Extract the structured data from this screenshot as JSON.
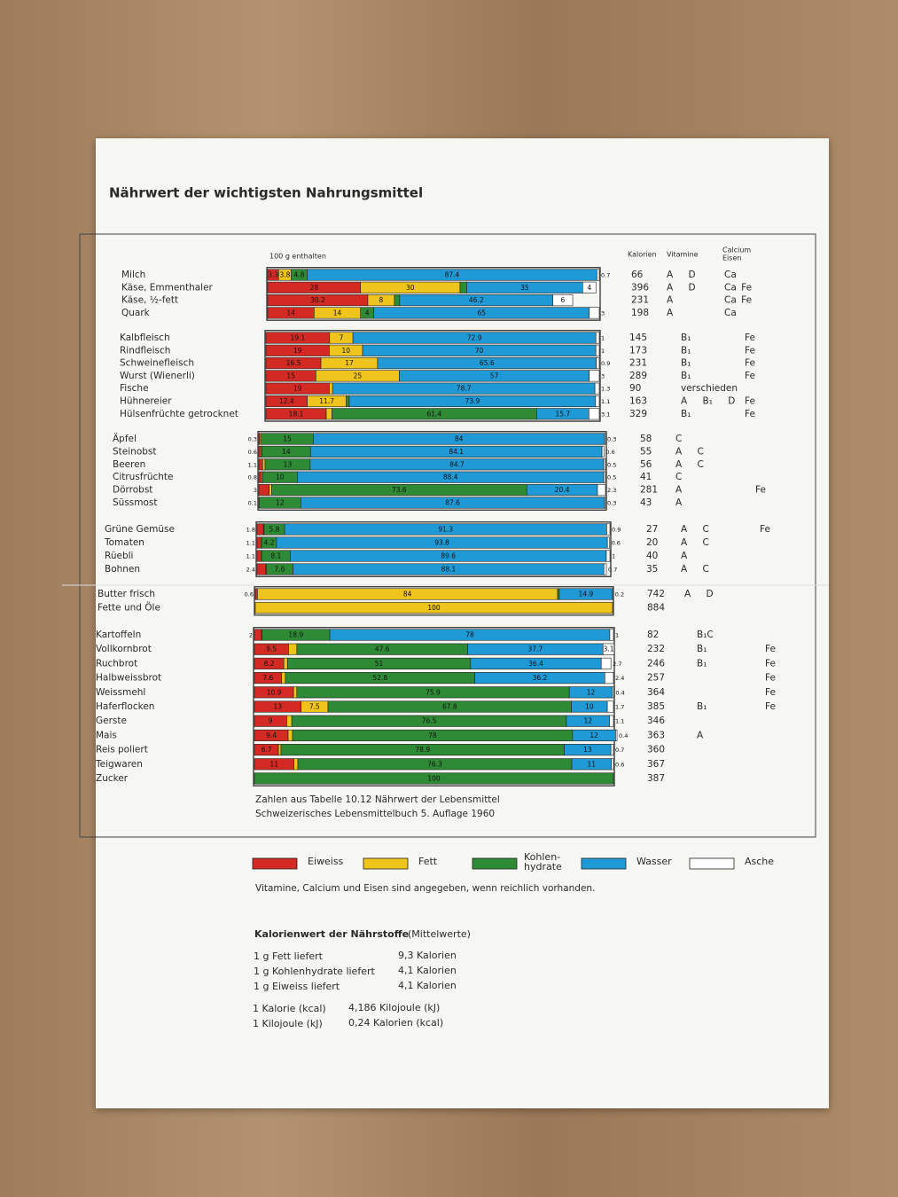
{
  "chart_data": {
    "type": "bar",
    "stacked": true,
    "title": "Nährwert der wichtigsten Nahrungsmittel",
    "subtitle": "100 g enthalten",
    "column_headers": {
      "kalorien": "Kalorien",
      "vitamine": "Vitamine",
      "calcium_eisen": [
        "Calcium",
        "Eisen"
      ]
    },
    "xlim": [
      0,
      100
    ],
    "legend": [
      {
        "name": "Eiweiss",
        "color": "#d42a24"
      },
      {
        "name": "Fett",
        "color": "#efc41c"
      },
      {
        "name": "Kohlen-\nhydrate",
        "color": "#2e8a34"
      },
      {
        "name": "Wasser",
        "color": "#1f9ad6"
      },
      {
        "name": "Asche",
        "color": "#ffffff"
      }
    ],
    "groups": [
      {
        "categories": [
          "Milch",
          "Käse, Emmenthaler",
          "Käse, ½-fett",
          "Quark"
        ],
        "values": [
          [
            3.3,
            28,
            30.2,
            14
          ],
          [
            3.8,
            30,
            8,
            14
          ],
          [
            4.8,
            2,
            1.6,
            4
          ],
          [
            87.4,
            35,
            46.2,
            65
          ],
          [
            0.7,
            4,
            6,
            3
          ]
        ],
        "kalorien": [
          66,
          396,
          231,
          198
        ],
        "vitamine": [
          "A D",
          "A D",
          "A",
          "A"
        ],
        "calcium_eisen": [
          "Ca",
          "Ca Fe",
          "Ca Fe",
          "Ca"
        ]
      },
      {
        "categories": [
          "Kalbfleisch",
          "Rindfleisch",
          "Schweinefleisch",
          "Wurst (Wienerli)",
          "Fische",
          "Hühnereier",
          "Hülsenfrüchte getrocknet"
        ],
        "values": [
          [
            19.1,
            19,
            16.5,
            15,
            19,
            12.4,
            18.1
          ],
          [
            7,
            10,
            17,
            25,
            1,
            11.7,
            1.7
          ],
          [
            null,
            null,
            null,
            null,
            null,
            0.9,
            61.4
          ],
          [
            72.9,
            70,
            65.6,
            57,
            78.7,
            73.9,
            15.7
          ],
          [
            1,
            1,
            0.9,
            3,
            1.3,
            1.1,
            3.1
          ]
        ],
        "kalorien": [
          145,
          173,
          231,
          289,
          90,
          163,
          329
        ],
        "vitamine": [
          "B₁",
          "B₁",
          "B₁",
          "B₁",
          "verschieden",
          "A B₁ D",
          "B₁"
        ],
        "calcium_eisen": [
          "Fe",
          "Fe",
          "Fe",
          "Fe",
          null,
          "Fe",
          "Fe"
        ]
      },
      {
        "categories": [
          "Äpfel",
          "Steinobst",
          "Beeren",
          "Citrusfrüchte",
          "Dörrobst",
          "Süssmost"
        ],
        "values": [
          [
            0.3,
            0.6,
            1.1,
            0.8,
            3,
            0.1
          ],
          [
            0.4,
            0.3,
            0.7,
            0.3,
            0.7,
            null
          ],
          [
            15,
            14,
            13,
            10,
            73.6,
            12
          ],
          [
            84,
            84.1,
            84.7,
            88.4,
            20.4,
            87.6
          ],
          [
            0.3,
            0.6,
            0.5,
            0.5,
            2.3,
            0.3
          ]
        ],
        "kalorien": [
          58,
          55,
          56,
          41,
          281,
          43
        ],
        "vitamine": [
          "C",
          "A C",
          "A C",
          "C",
          "A",
          "A"
        ],
        "calcium_eisen": [
          null,
          null,
          null,
          null,
          "Fe",
          null
        ]
      },
      {
        "categories": [
          "Grüne Gemüse",
          "Tomaten",
          "Rüebli",
          "Bohnen"
        ],
        "values": [
          [
            1.8,
            1.1,
            1.1,
            2.4
          ],
          [
            0.2,
            0.2,
            0.2,
            0.2
          ],
          [
            5.8,
            4.2,
            8.1,
            7.6
          ],
          [
            91.3,
            93.8,
            89.6,
            88.1
          ],
          [
            0.9,
            0.6,
            1,
            0.7
          ]
        ],
        "kalorien": [
          27,
          20,
          40,
          35
        ],
        "vitamine": [
          "A C",
          "A C",
          "A",
          "A C"
        ],
        "calcium_eisen": [
          "Fe",
          null,
          null,
          null
        ]
      },
      {
        "categories": [
          "Butter frisch",
          "Fette und Öle"
        ],
        "values": [
          [
            0.6,
            null
          ],
          [
            84,
            100
          ],
          [
            0.5,
            null
          ],
          [
            14.9,
            null
          ],
          [
            0.2,
            null
          ]
        ],
        "kalorien": [
          742,
          884
        ],
        "vitamine": [
          "A D",
          null
        ],
        "calcium_eisen": [
          null,
          null
        ]
      },
      {
        "categories": [
          "Kartoffeln",
          "Vollkornbrot",
          "Ruchbrot",
          "Halbweissbrot",
          "Weissmehl",
          "Haferflocken",
          "Gerste",
          "Mais",
          "Reis poliert",
          "Teigwaren",
          "Zucker"
        ],
        "values": [
          [
            2,
            9.5,
            8.2,
            7.6,
            10.9,
            13,
            9,
            9.4,
            6.7,
            11,
            null
          ],
          [
            0.1,
            2.3,
            1,
            1,
            0.9,
            7.5,
            1.4,
            1.2,
            0.7,
            1.1,
            null
          ],
          [
            18.9,
            47.6,
            51,
            52.8,
            75.9,
            67.8,
            76.5,
            78,
            78.9,
            76.3,
            100
          ],
          [
            78,
            37.7,
            36.4,
            36.2,
            12,
            10,
            12,
            12,
            13,
            11,
            null
          ],
          [
            1,
            3.1,
            2.7,
            2.4,
            0.4,
            1.7,
            1.1,
            0.4,
            0.7,
            0.6,
            null
          ]
        ],
        "kalorien": [
          82,
          232,
          246,
          257,
          364,
          385,
          346,
          363,
          360,
          367,
          387
        ],
        "vitamine": [
          "B₁C",
          "B₁",
          "B₁",
          null,
          null,
          "B₁",
          null,
          "A",
          null,
          null,
          null
        ],
        "calcium_eisen": [
          null,
          "Fe",
          "Fe",
          "Fe",
          "Fe",
          "Fe",
          null,
          null,
          null,
          null,
          null
        ]
      }
    ],
    "source": [
      "Zahlen aus Tabelle 10.12   Nährwert der Lebensmittel",
      "Schweizerisches Lebensmittelbuch   5. Auflage 1960"
    ],
    "note": "Vitamine, Calcium und Eisen sind angegeben, wenn reichlich vorhanden.",
    "kalorienwert": {
      "title": "Kalorienwert der Nährstoffe",
      "title_suffix": "(Mittelwerte)",
      "rows": [
        [
          "1 g Fett liefert",
          "9,3 Kalorien"
        ],
        [
          "1 g Kohlenhydrate liefert",
          "4,1 Kalorien"
        ],
        [
          "1 g Eiweiss liefert",
          "4,1 Kalorien"
        ]
      ],
      "conversions": [
        [
          "1 Kalorie (kcal)",
          "4,186 Kilojoule (kJ)"
        ],
        [
          "1 Kilojoule (kJ)",
          "0,24 Kalorien (kcal)"
        ]
      ]
    }
  }
}
